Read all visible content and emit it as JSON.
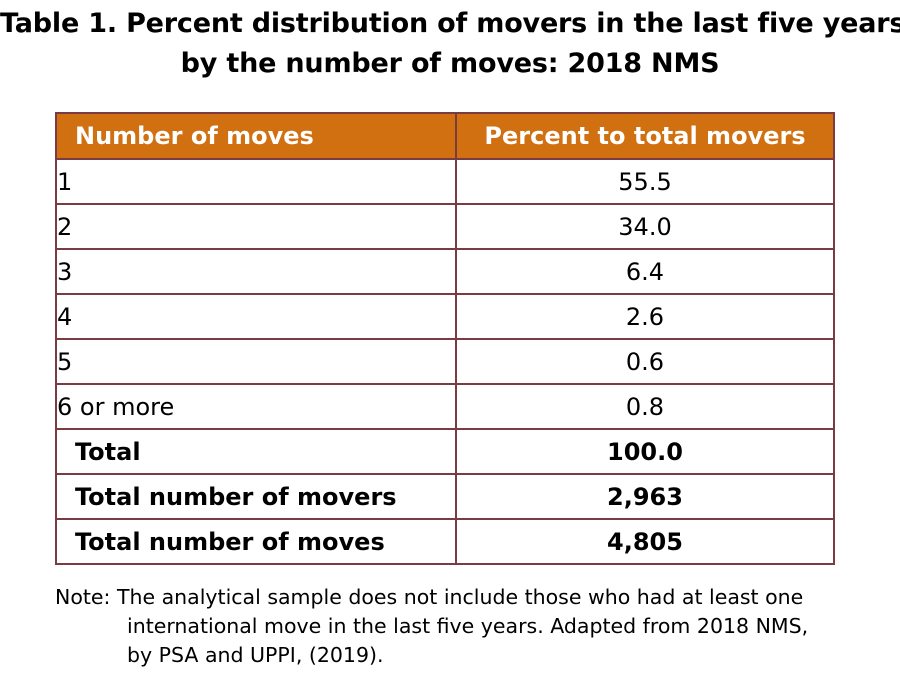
{
  "title": {
    "line1": "Table 1. Percent distribution of movers in the last five years",
    "line2": "by the number of moves: 2018 NMS"
  },
  "table": {
    "headers": [
      "Number of moves",
      "Percent to total movers"
    ],
    "rows": [
      {
        "label": "1",
        "value": "55.5"
      },
      {
        "label": "2",
        "value": "34.0"
      },
      {
        "label": "3",
        "value": "6.4"
      },
      {
        "label": "4",
        "value": "2.6"
      },
      {
        "label": "5",
        "value": "0.6"
      },
      {
        "label": "6 or more",
        "value": "0.8"
      }
    ],
    "summary": [
      {
        "label": "Total",
        "value": "100.0"
      },
      {
        "label": "Total number of movers",
        "value": "2,963"
      },
      {
        "label": "Total number of moves",
        "value": "4,805"
      }
    ]
  },
  "note": {
    "line1": "Note:  The analytical sample does not include those who had at least one",
    "line2": "international move in the last five years. Adapted from 2018 NMS,",
    "line3": "by PSA and UPPI, (2019)."
  },
  "colors": {
    "header_bg": "#d07010",
    "border": "#7a3b43"
  }
}
